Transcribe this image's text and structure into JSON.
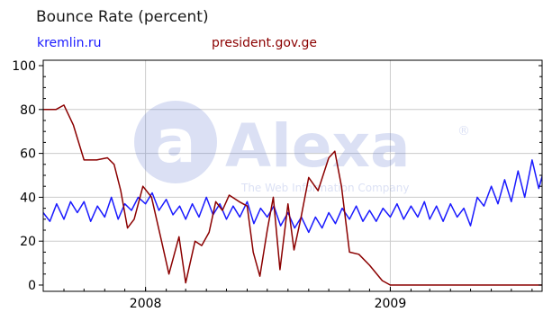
{
  "chart_data": {
    "type": "line",
    "title": "Bounce Rate (percent)",
    "watermark": "Alexa",
    "watermark_tagline": "The Web Information Company",
    "xlabel": "",
    "ylabel": "",
    "ylim": [
      0,
      100
    ],
    "xlim": [
      "2007-08-01",
      "2010-01-01"
    ],
    "y_ticks": [
      0,
      20,
      40,
      60,
      80,
      100
    ],
    "x_ticks": [
      {
        "label": "2008",
        "value": "2008-01-01"
      },
      {
        "label": "2009",
        "value": "2009-01-01"
      }
    ],
    "grid": true,
    "legend": "top",
    "series": [
      {
        "name": "kremlin.ru",
        "color": "#1a1aff",
        "points": [
          [
            "2007-08-01",
            33
          ],
          [
            "2007-08-11",
            29
          ],
          [
            "2007-08-21",
            37
          ],
          [
            "2007-09-01",
            30
          ],
          [
            "2007-09-11",
            38
          ],
          [
            "2007-09-21",
            33
          ],
          [
            "2007-10-01",
            38
          ],
          [
            "2007-10-11",
            29
          ],
          [
            "2007-10-21",
            36
          ],
          [
            "2007-11-01",
            31
          ],
          [
            "2007-11-11",
            40
          ],
          [
            "2007-11-21",
            30
          ],
          [
            "2007-12-01",
            37
          ],
          [
            "2007-12-11",
            34
          ],
          [
            "2007-12-21",
            40
          ],
          [
            "2008-01-01",
            37
          ],
          [
            "2008-01-11",
            42
          ],
          [
            "2008-01-21",
            34
          ],
          [
            "2008-02-01",
            39
          ],
          [
            "2008-02-11",
            32
          ],
          [
            "2008-02-21",
            36
          ],
          [
            "2008-03-01",
            30
          ],
          [
            "2008-03-11",
            37
          ],
          [
            "2008-03-21",
            31
          ],
          [
            "2008-04-01",
            40
          ],
          [
            "2008-04-11",
            32
          ],
          [
            "2008-04-21",
            37
          ],
          [
            "2008-05-01",
            30
          ],
          [
            "2008-05-11",
            36
          ],
          [
            "2008-05-21",
            31
          ],
          [
            "2008-06-01",
            38
          ],
          [
            "2008-06-11",
            28
          ],
          [
            "2008-06-21",
            35
          ],
          [
            "2008-07-01",
            31
          ],
          [
            "2008-07-11",
            36
          ],
          [
            "2008-07-21",
            27
          ],
          [
            "2008-08-01",
            33
          ],
          [
            "2008-08-11",
            26
          ],
          [
            "2008-08-21",
            31
          ],
          [
            "2008-09-01",
            24
          ],
          [
            "2008-09-11",
            31
          ],
          [
            "2008-09-21",
            26
          ],
          [
            "2008-10-01",
            33
          ],
          [
            "2008-10-11",
            28
          ],
          [
            "2008-10-21",
            35
          ],
          [
            "2008-11-01",
            30
          ],
          [
            "2008-11-11",
            36
          ],
          [
            "2008-11-21",
            29
          ],
          [
            "2008-12-01",
            34
          ],
          [
            "2008-12-11",
            29
          ],
          [
            "2008-12-21",
            35
          ],
          [
            "2009-01-01",
            31
          ],
          [
            "2009-01-11",
            37
          ],
          [
            "2009-01-21",
            30
          ],
          [
            "2009-02-01",
            36
          ],
          [
            "2009-02-11",
            31
          ],
          [
            "2009-02-21",
            38
          ],
          [
            "2009-03-01",
            30
          ],
          [
            "2009-03-11",
            36
          ],
          [
            "2009-03-21",
            29
          ],
          [
            "2009-04-01",
            37
          ],
          [
            "2009-04-11",
            31
          ],
          [
            "2009-04-21",
            35
          ],
          [
            "2009-05-01",
            27
          ],
          [
            "2009-05-11",
            40
          ],
          [
            "2009-05-21",
            36
          ],
          [
            "2009-06-01",
            45
          ],
          [
            "2009-06-11",
            37
          ],
          [
            "2009-06-21",
            48
          ],
          [
            "2009-07-01",
            38
          ],
          [
            "2009-07-11",
            52
          ],
          [
            "2009-07-21",
            40
          ],
          [
            "2009-08-01",
            57
          ],
          [
            "2009-08-11",
            44
          ],
          [
            "2009-08-21",
            55
          ],
          [
            "2009-08-31",
            45
          ]
        ]
      },
      {
        "name": "president.gov.ge",
        "color": "#8b0000",
        "points": [
          [
            "2007-08-01",
            80
          ],
          [
            "2007-08-20",
            80
          ],
          [
            "2007-09-01",
            82
          ],
          [
            "2007-09-15",
            73
          ],
          [
            "2007-10-01",
            57
          ],
          [
            "2007-10-20",
            57
          ],
          [
            "2007-11-05",
            58
          ],
          [
            "2007-11-15",
            55
          ],
          [
            "2007-11-25",
            43
          ],
          [
            "2007-12-05",
            26
          ],
          [
            "2007-12-15",
            30
          ],
          [
            "2007-12-28",
            45
          ],
          [
            "2008-01-10",
            40
          ],
          [
            "2008-01-25",
            20
          ],
          [
            "2008-02-05",
            5
          ],
          [
            "2008-02-20",
            22
          ],
          [
            "2008-03-01",
            1
          ],
          [
            "2008-03-15",
            20
          ],
          [
            "2008-03-25",
            18
          ],
          [
            "2008-04-05",
            24
          ],
          [
            "2008-04-15",
            38
          ],
          [
            "2008-04-25",
            34
          ],
          [
            "2008-05-05",
            41
          ],
          [
            "2008-05-20",
            38
          ],
          [
            "2008-06-01",
            36
          ],
          [
            "2008-06-10",
            15
          ],
          [
            "2008-06-20",
            4
          ],
          [
            "2008-07-01",
            25
          ],
          [
            "2008-07-10",
            40
          ],
          [
            "2008-07-20",
            7
          ],
          [
            "2008-08-01",
            37
          ],
          [
            "2008-08-10",
            16
          ],
          [
            "2008-08-20",
            30
          ],
          [
            "2008-09-01",
            49
          ],
          [
            "2008-09-15",
            43
          ],
          [
            "2008-10-01",
            58
          ],
          [
            "2008-10-10",
            61
          ],
          [
            "2008-10-20",
            45
          ],
          [
            "2008-11-01",
            15
          ],
          [
            "2008-11-15",
            14
          ],
          [
            "2008-12-01",
            9
          ],
          [
            "2008-12-20",
            2
          ],
          [
            "2009-01-01",
            0
          ],
          [
            "2009-09-01",
            0
          ]
        ]
      }
    ]
  }
}
